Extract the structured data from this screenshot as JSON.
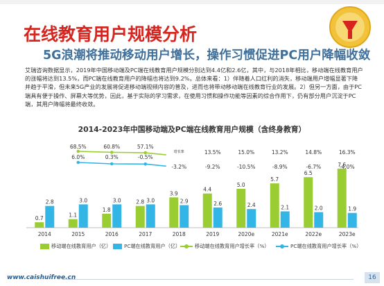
{
  "header": {
    "title": "在线教育用户规模分析",
    "subtitle": "5G浪潮将推动移动用户增长，操作习惯促进PC用户降幅收敛",
    "paragraph": "艾瑞咨询数据显示，2019年中国移动端及PC端在线教育用户规模分别达到4.4亿和2.6亿，其中，与2018年相比，移动端在线教育用户的涨幅将达到13.5%，而PC端在线教育用户的降幅也将达到9.2%。总体来看：1）伴随着人口红利的消失，移动端用户增幅显著下降并趋于平滑，但未来5G产业的发展将促进移动端视频内容的普及，进而也将带动移动端在线教育行业的发展。2）但另一方面，由于PC端具有便于操作、屏幕大等优势，因此，基于实际的学习需求，在使用习惯和操作功能等因素的综合作用下，仍有部分用户沉淀于PC端，其用户降幅将最终收敛。"
  },
  "footer": {
    "url": "www.caishuifree.cn",
    "page": "16"
  },
  "colors": {
    "mobile": "#9acd32",
    "pc": "#33b5e5",
    "title": "#d6251f",
    "subtitle": "#3e6f9a"
  },
  "chart_data": {
    "type": "bar",
    "title": "2014-2023年中国移动端及PC端在线教育用户规模（含终身教育）",
    "categories": [
      "2014",
      "2015",
      "2016",
      "2017",
      "2018",
      "2019",
      "2020e",
      "2021e",
      "2022e",
      "2023e"
    ],
    "series": [
      {
        "name": "移动端在线教育用户（亿）",
        "kind": "bar",
        "values": [
          0.7,
          1.1,
          1.8,
          2.8,
          3.9,
          4.4,
          5.0,
          5.7,
          6.5,
          7.6
        ]
      },
      {
        "name": "PC端在线教育用户（亿）",
        "kind": "bar",
        "values": [
          2.8,
          3.0,
          3.0,
          3.0,
          2.9,
          2.6,
          2.4,
          2.1,
          2.0,
          1.9
        ]
      },
      {
        "name": "移动端在线教育用户增长率（%）",
        "kind": "line",
        "values": [
          null,
          68.5,
          60.8,
          57.1,
          null,
          13.5,
          15.0,
          13.2,
          14.8,
          16.3
        ],
        "labels": [
          "",
          "68.5%",
          "60.8%",
          "57.1%",
          "",
          "13.5%",
          "15.0%",
          "13.2%",
          "14.8%",
          "16.3%"
        ]
      },
      {
        "name": "PC端在线教育用户增长率（%）",
        "kind": "line",
        "values": [
          null,
          6.0,
          0.3,
          -0.5,
          -3.2,
          -9.2,
          -10.5,
          -8.9,
          -6.7,
          -4.0
        ],
        "labels": [
          "",
          "6.0%",
          "0.3%",
          "-0.5%",
          "-3.2%",
          "-9.2%",
          "-10.5%",
          "-8.9%",
          "-6.7%",
          "-4.0%"
        ]
      }
    ],
    "value_labels_mobile": [
      "0.7",
      "1.1",
      "1.8",
      "2.8",
      "3.9",
      "4.4",
      "5.0",
      "5.7",
      "6.5",
      "7.6"
    ],
    "value_labels_pc": [
      "2.8",
      "3.0",
      "3.0",
      "3.0",
      "2.9",
      "2.6",
      "2.4",
      "2.1",
      "2.0",
      "1.9"
    ],
    "stray_label": "增长率"
  }
}
